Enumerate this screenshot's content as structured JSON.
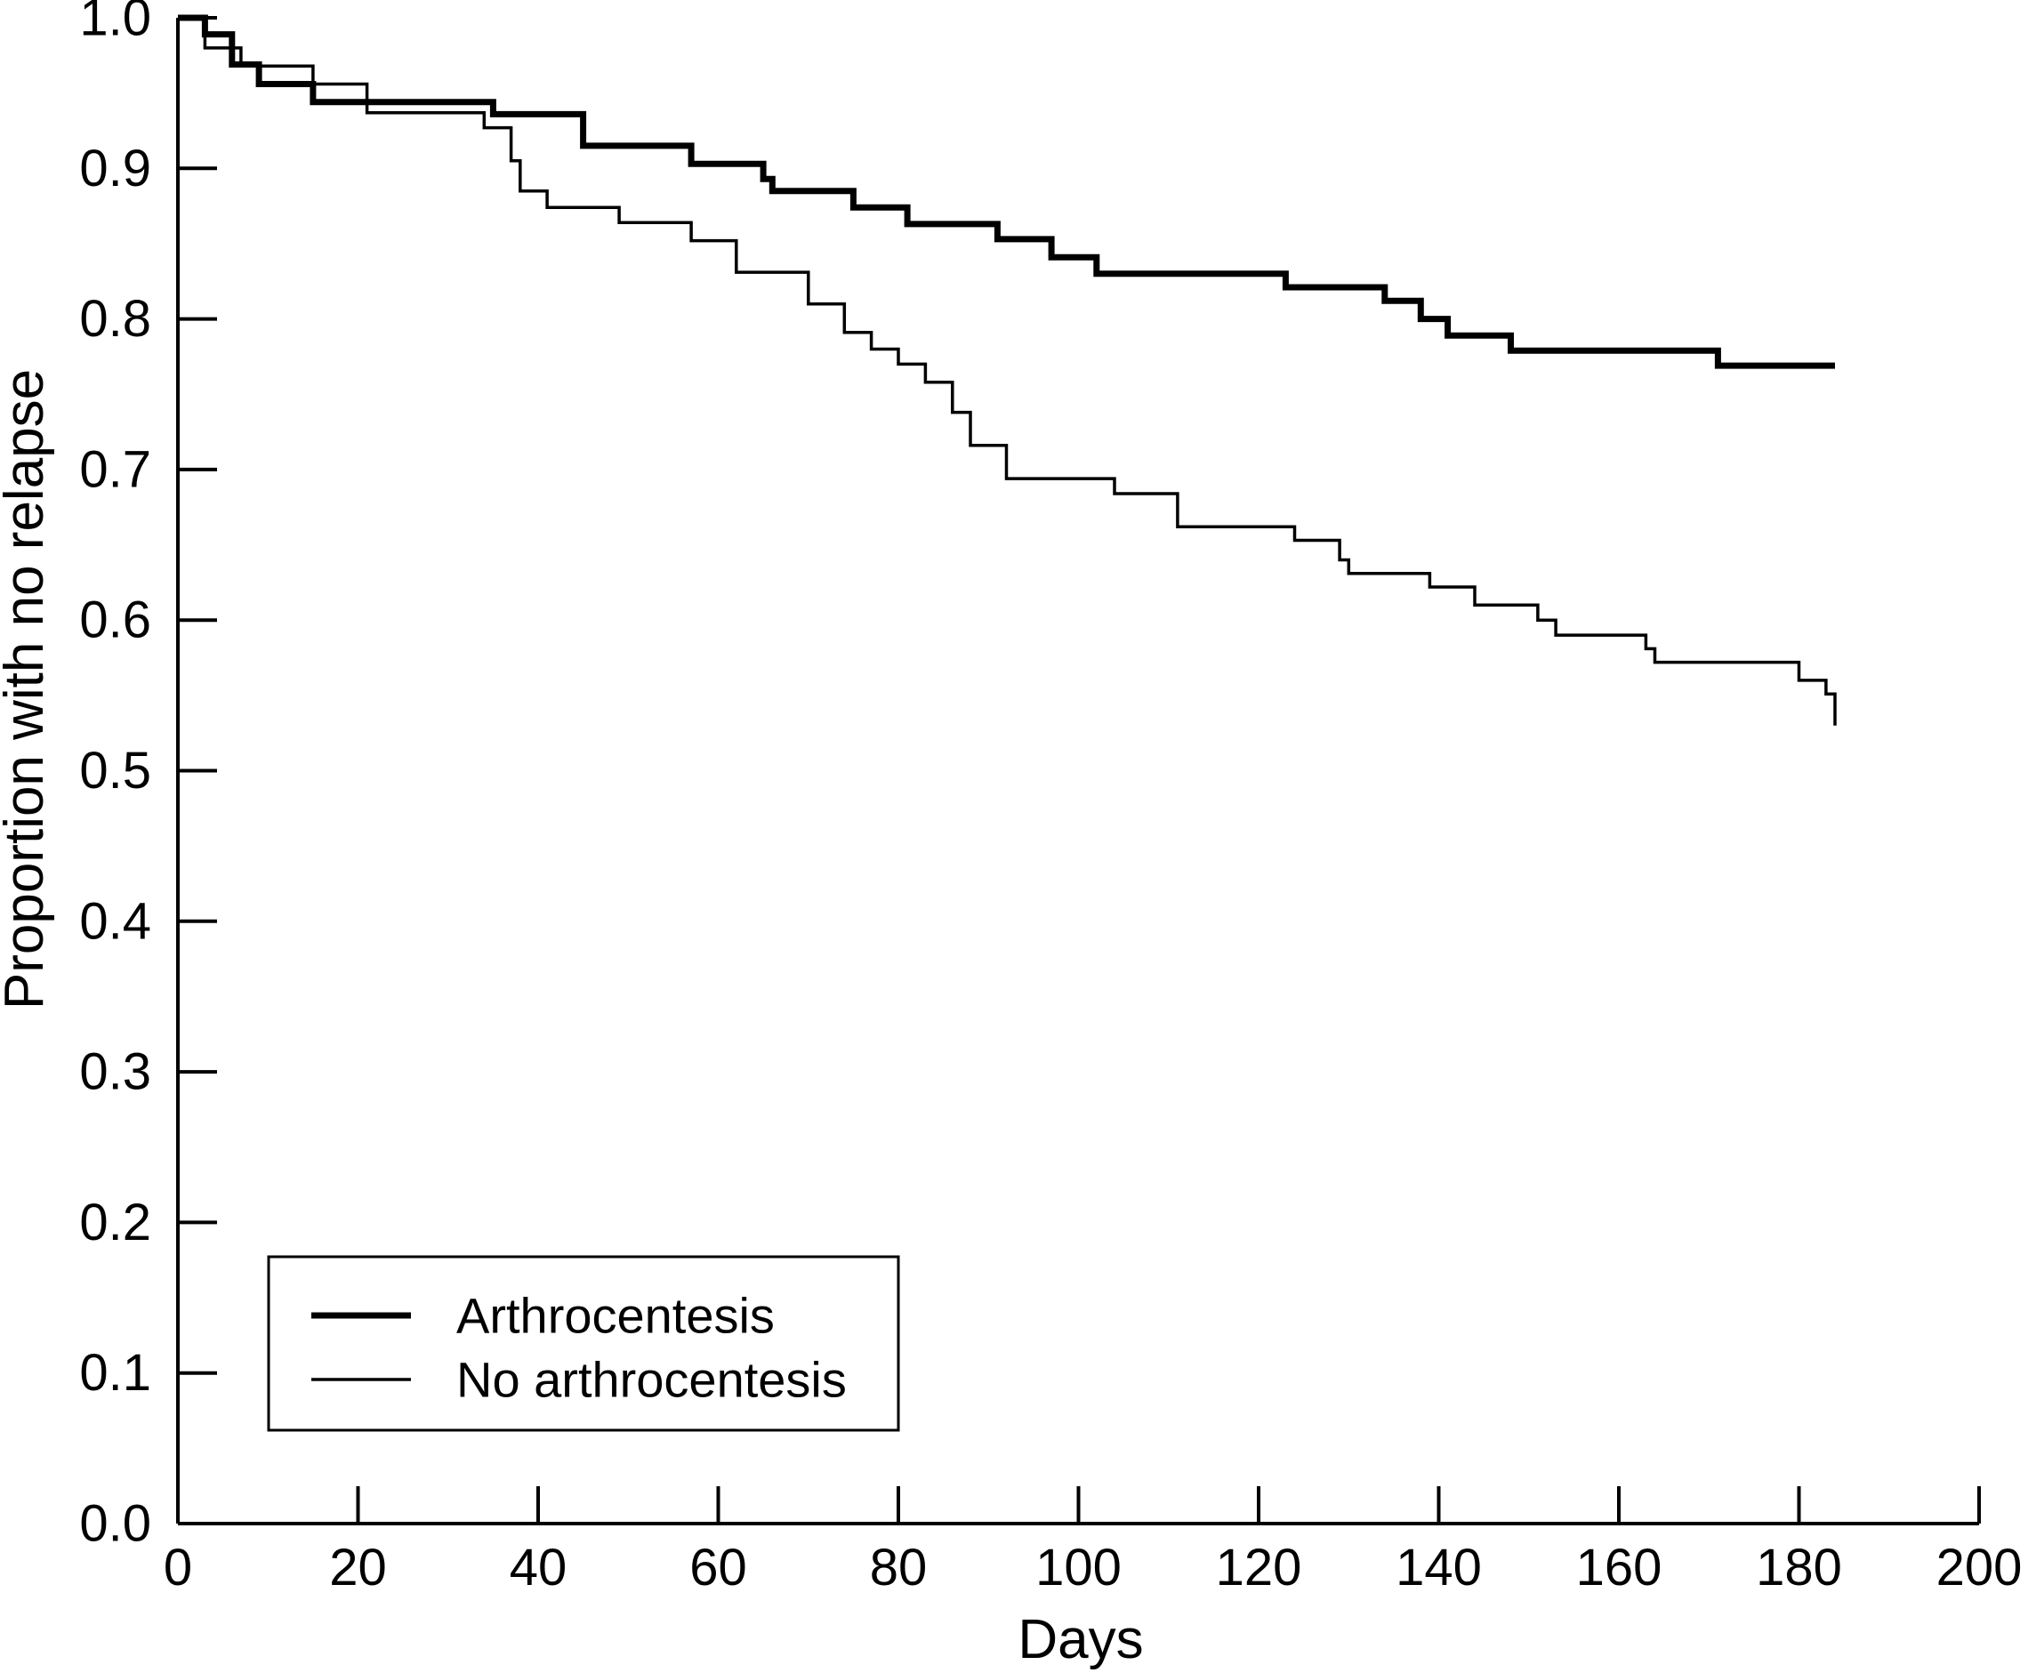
{
  "colors": {
    "line": "#000000",
    "background": "#ffffff"
  },
  "chart_data": {
    "type": "line",
    "variant": "kaplan-meier-step",
    "title": "",
    "xlabel": "Days",
    "ylabel": "Proportion with no relapse",
    "xlim": [
      0,
      200
    ],
    "ylim": [
      0.0,
      1.0
    ],
    "grid": false,
    "legend_position": "lower-left",
    "x_ticks": [
      0,
      20,
      40,
      60,
      80,
      100,
      120,
      140,
      160,
      180,
      200
    ],
    "y_tick_labels": [
      "0.0",
      "0.1",
      "0.2",
      "0.3",
      "0.4",
      "0.5",
      "0.6",
      "0.7",
      "0.8",
      "0.9",
      "1.0"
    ],
    "series": [
      {
        "name": "Arthrocentesis",
        "stroke": "#000000",
        "thickness": "thick",
        "points": [
          [
            0,
            1.0
          ],
          [
            3,
            0.989
          ],
          [
            6,
            0.969
          ],
          [
            9,
            0.956
          ],
          [
            15,
            0.944
          ],
          [
            35,
            0.936
          ],
          [
            45,
            0.915
          ],
          [
            57,
            0.903
          ],
          [
            65,
            0.893
          ],
          [
            66,
            0.885
          ],
          [
            75,
            0.874
          ],
          [
            81,
            0.863
          ],
          [
            91,
            0.853
          ],
          [
            97,
            0.841
          ],
          [
            102,
            0.83
          ],
          [
            123,
            0.821
          ],
          [
            134,
            0.812
          ],
          [
            138,
            0.8
          ],
          [
            141,
            0.789
          ],
          [
            148,
            0.779
          ],
          [
            171,
            0.769
          ],
          [
            184,
            0.769
          ]
        ]
      },
      {
        "name": "No arthrocentesis",
        "stroke": "#000000",
        "thickness": "thin",
        "points": [
          [
            0,
            1.0
          ],
          [
            3,
            0.98
          ],
          [
            7,
            0.968
          ],
          [
            15,
            0.956
          ],
          [
            21,
            0.937
          ],
          [
            34,
            0.927
          ],
          [
            37,
            0.905
          ],
          [
            38,
            0.885
          ],
          [
            41,
            0.874
          ],
          [
            49,
            0.864
          ],
          [
            57,
            0.852
          ],
          [
            62,
            0.831
          ],
          [
            70,
            0.81
          ],
          [
            74,
            0.791
          ],
          [
            77,
            0.78
          ],
          [
            80,
            0.77
          ],
          [
            83,
            0.758
          ],
          [
            86,
            0.738
          ],
          [
            88,
            0.716
          ],
          [
            92,
            0.694
          ],
          [
            104,
            0.684
          ],
          [
            111,
            0.662
          ],
          [
            124,
            0.653
          ],
          [
            129,
            0.64
          ],
          [
            130,
            0.631
          ],
          [
            139,
            0.622
          ],
          [
            144,
            0.61
          ],
          [
            151,
            0.6
          ],
          [
            153,
            0.59
          ],
          [
            163,
            0.581
          ],
          [
            164,
            0.572
          ],
          [
            180,
            0.56
          ],
          [
            183,
            0.551
          ],
          [
            184,
            0.53
          ]
        ]
      }
    ]
  },
  "legend": {
    "items": [
      {
        "label": "Arthrocentesis",
        "style": "thick"
      },
      {
        "label": "No arthrocentesis",
        "style": "thin"
      }
    ]
  }
}
